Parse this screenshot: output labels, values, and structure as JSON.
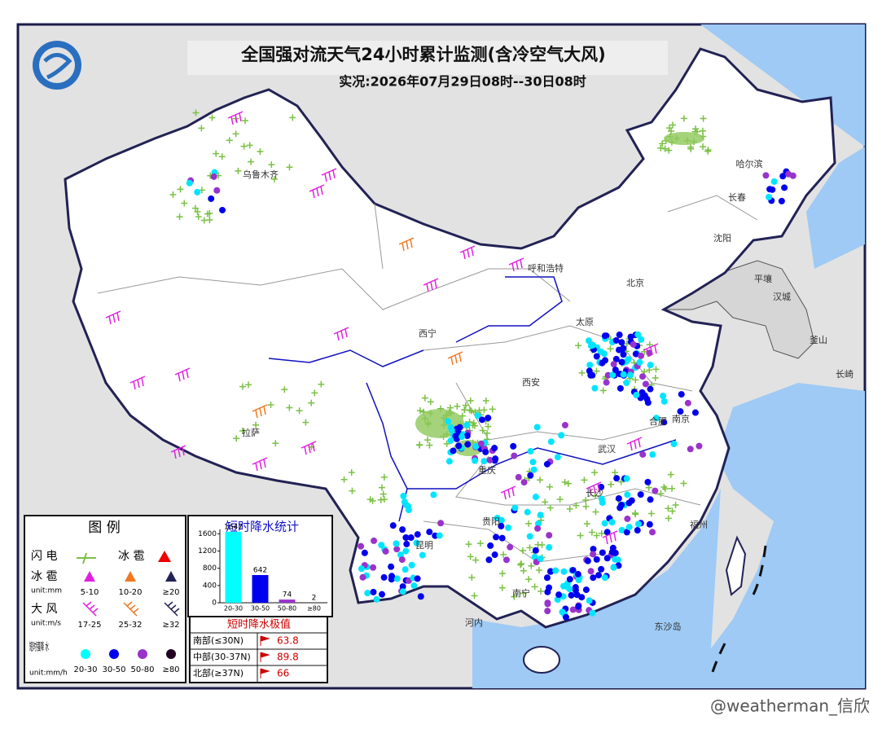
{
  "header": {
    "title": "全国强对流天气24小时累计监测(含冷空气大风)",
    "subtitle": "实况:2026年07月29日08时--30日08时"
  },
  "cities": [
    "乌鲁木齐",
    "哈尔滨",
    "长春",
    "沈阳",
    "呼和浩特",
    "北京",
    "太原",
    "西宁",
    "西安",
    "合肥",
    "南京",
    "武汉",
    "拉萨",
    "重庆",
    "长沙",
    "贵阳",
    "昆明",
    "南宁",
    "福州",
    "平壤",
    "汉城",
    "釜山",
    "长崎",
    "河内",
    "东沙岛"
  ],
  "legend": {
    "title": "图 例",
    "lightning": "闪 电",
    "hail_symbol": "冰 雹",
    "hail": {
      "name": "冰 雹",
      "unit": "unit:mm",
      "levels": [
        "5-10",
        "10-20",
        "≥20"
      ]
    },
    "wind": {
      "name": "大 风",
      "unit": "unit:m/s",
      "levels": [
        "17-25",
        "25-32",
        "≥32"
      ]
    },
    "rain": {
      "name": "短时强降 水",
      "unit": "unit:mm/h",
      "levels": [
        "20-30",
        "30-50",
        "50-80",
        "≥80"
      ]
    }
  },
  "chart_data": {
    "type": "bar",
    "title": "短时降水统计",
    "categories": [
      "20-30",
      "30-50",
      "50-80",
      "≥80"
    ],
    "values": [
      1647,
      642,
      74,
      2
    ],
    "colors": [
      "#00ffff",
      "#0000ee",
      "#9933cc",
      "#220022"
    ],
    "ylim": [
      0,
      1700
    ],
    "yticks": [
      0,
      400,
      800,
      1200,
      1600
    ]
  },
  "extremes": {
    "title": "短时降水极值",
    "rows": [
      [
        "南部(≤30N)",
        "63.8"
      ],
      [
        "中部(30-37N)",
        "89.8"
      ],
      [
        "北部(≥37N)",
        "66"
      ]
    ]
  },
  "watermark": "@weatherman_信欣"
}
